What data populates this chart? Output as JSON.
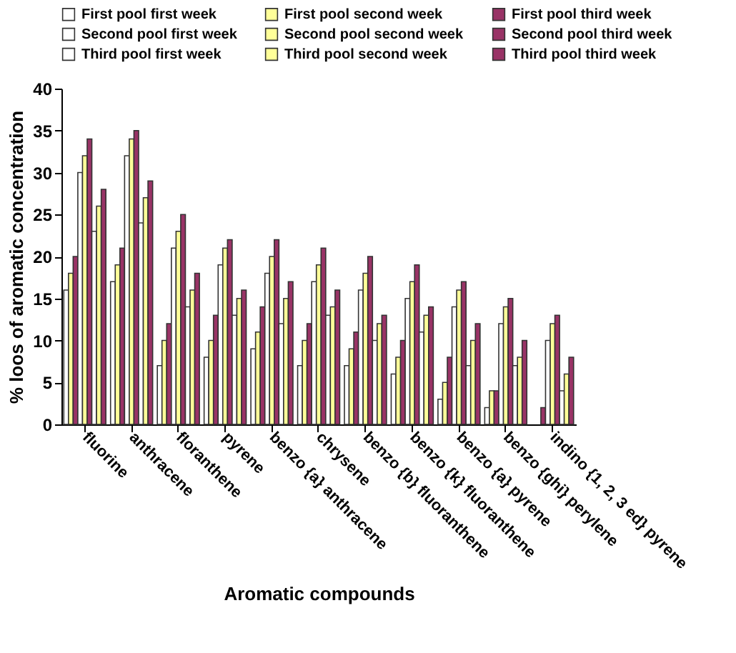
{
  "chart_data": {
    "type": "bar",
    "xlabel": "Aromatic compounds",
    "ylabel": "% loos of aromatic concentration",
    "categories": [
      "fluorine",
      "anthracene",
      "floranthene",
      "pyrene",
      "benzo {a} anthracene",
      "chrysene",
      "benzo {b} fluoranthene",
      "benzo {k} fluoranthene",
      "benzo {a} pyrene",
      "benzo {ghi} perylene",
      "indino {1, 2, 3 ed} pyrene"
    ],
    "series": [
      {
        "name": "First pool first week",
        "color": "#ffffff",
        "values": [
          16,
          17,
          7,
          8,
          9,
          7,
          7,
          6,
          3,
          2,
          0
        ]
      },
      {
        "name": "First pool second week",
        "color": "#ffff99",
        "values": [
          18,
          19,
          10,
          10,
          11,
          10,
          9,
          8,
          5,
          4,
          0
        ]
      },
      {
        "name": "First pool third week",
        "color": "#993366",
        "values": [
          20,
          21,
          12,
          13,
          14,
          12,
          11,
          10,
          8,
          4,
          2
        ]
      },
      {
        "name": "Second pool first week",
        "color": "#ffffff",
        "values": [
          30,
          32,
          21,
          19,
          18,
          17,
          16,
          15,
          14,
          12,
          10
        ]
      },
      {
        "name": "Second pool second week",
        "color": "#ffff99",
        "values": [
          32,
          34,
          23,
          21,
          20,
          19,
          18,
          17,
          16,
          14,
          12
        ]
      },
      {
        "name": "Second pool third week",
        "color": "#993366",
        "values": [
          34,
          35,
          25,
          22,
          22,
          21,
          20,
          19,
          17,
          15,
          13
        ]
      },
      {
        "name": "Third pool  first week",
        "color": "#ffffff",
        "values": [
          23,
          24,
          14,
          13,
          12,
          13,
          10,
          11,
          7,
          7,
          4
        ]
      },
      {
        "name": "Third pool  second week",
        "color": "#ffff99",
        "values": [
          26,
          27,
          16,
          15,
          15,
          14,
          12,
          13,
          10,
          8,
          6
        ]
      },
      {
        "name": "Third pool  third week",
        "color": "#993366",
        "values": [
          28,
          29,
          18,
          16,
          17,
          16,
          13,
          14,
          12,
          10,
          8
        ]
      }
    ],
    "ylim": [
      0,
      40
    ],
    "yticks": [
      0,
      5,
      10,
      15,
      20,
      25,
      30,
      35,
      40
    ],
    "grid": false,
    "legend": "top"
  }
}
